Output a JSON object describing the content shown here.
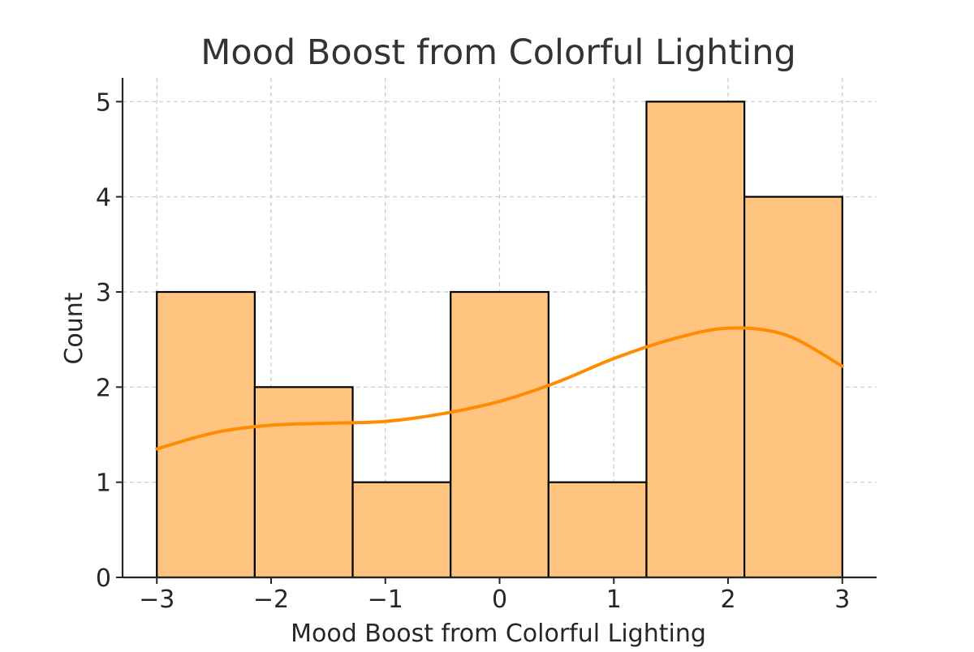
{
  "chart_data": {
    "type": "bar",
    "subtype": "histogram_with_kde",
    "title": "Mood Boost from Colorful Lighting",
    "xlabel": "Mood Boost from Colorful Lighting",
    "ylabel": "Count",
    "xlim": [
      -3.3,
      3.3
    ],
    "ylim": [
      0,
      5.25
    ],
    "xticks": [
      -3,
      -2,
      -1,
      0,
      1,
      2,
      3
    ],
    "xtick_labels": [
      "−3",
      "−2",
      "−1",
      "0",
      "1",
      "2",
      "3"
    ],
    "yticks": [
      0,
      1,
      2,
      3,
      4,
      5
    ],
    "ytick_labels": [
      "0",
      "1",
      "2",
      "3",
      "4",
      "5"
    ],
    "bin_edges": [
      -3,
      -2.142857,
      -1.285714,
      -0.428571,
      0.428571,
      1.285714,
      2.142857,
      3
    ],
    "counts": [
      3,
      2,
      1,
      3,
      1,
      5,
      4
    ],
    "kde": {
      "x": [
        -3,
        -2.5,
        -2,
        -1.5,
        -1,
        -0.5,
        0,
        0.5,
        1,
        1.5,
        2,
        2.5,
        3
      ],
      "y": [
        1.35,
        1.52,
        1.6,
        1.62,
        1.64,
        1.72,
        1.85,
        2.05,
        2.3,
        2.5,
        2.62,
        2.55,
        2.22
      ]
    },
    "grid": true,
    "colors": {
      "bar_fill": "#ffc47f",
      "bar_edge": "#000000",
      "kde_line": "#ff8c00",
      "grid": "#c8c8c8"
    }
  }
}
